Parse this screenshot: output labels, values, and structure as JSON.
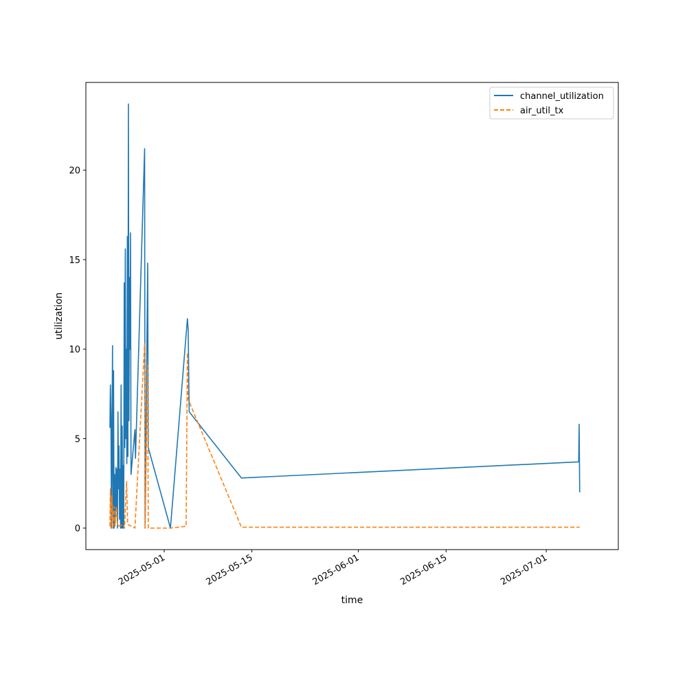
{
  "chart_data": {
    "type": "line",
    "title": "",
    "xlabel": "time",
    "ylabel": "utilization",
    "x_type": "date",
    "xlim": [
      "2025-04-18T12:00",
      "2025-07-12T12:00"
    ],
    "ylim": [
      -1.2,
      24.9
    ],
    "x_ticks": [
      "2025-05-01",
      "2025-05-15",
      "2025-06-01",
      "2025-06-15",
      "2025-07-01"
    ],
    "y_ticks": [
      0,
      5,
      10,
      15,
      20
    ],
    "grid": false,
    "legend": "top-right",
    "series": [
      {
        "name": "channel_utilization",
        "color": "#1f77b4",
        "style": "solid",
        "points": [
          [
            "2025-04-22T08:00",
            5.6
          ],
          [
            "2025-04-22T10:00",
            8.0
          ],
          [
            "2025-04-22T12:00",
            6.3
          ],
          [
            "2025-04-22T14:00",
            0.0
          ],
          [
            "2025-04-22T18:00",
            10.2
          ],
          [
            "2025-04-22T20:00",
            0.0
          ],
          [
            "2025-04-22T22:00",
            8.8
          ],
          [
            "2025-04-23T00:00",
            0.0
          ],
          [
            "2025-04-23T02:00",
            3.0
          ],
          [
            "2025-04-23T04:00",
            0.5
          ],
          [
            "2025-04-23T07:00",
            3.4
          ],
          [
            "2025-04-23T09:00",
            1.2
          ],
          [
            "2025-04-23T11:00",
            3.3
          ],
          [
            "2025-04-23T13:00",
            0.0
          ],
          [
            "2025-04-23T15:00",
            6.5
          ],
          [
            "2025-04-23T17:00",
            2.2
          ],
          [
            "2025-04-23T19:00",
            4.6
          ],
          [
            "2025-04-23T21:00",
            0.5
          ],
          [
            "2025-04-23T23:00",
            3.3
          ],
          [
            "2025-04-24T01:00",
            0.0
          ],
          [
            "2025-04-24T03:00",
            8.0
          ],
          [
            "2025-04-24T05:00",
            0.0
          ],
          [
            "2025-04-24T07:00",
            5.7
          ],
          [
            "2025-04-24T09:00",
            0.0
          ],
          [
            "2025-04-24T11:00",
            3.5
          ],
          [
            "2025-04-24T13:00",
            0.0
          ],
          [
            "2025-04-24T15:00",
            13.7
          ],
          [
            "2025-04-24T17:00",
            4.5
          ],
          [
            "2025-04-24T19:00",
            15.6
          ],
          [
            "2025-04-24T21:00",
            5.0
          ],
          [
            "2025-04-24T23:00",
            10.0
          ],
          [
            "2025-04-25T01:00",
            3.6
          ],
          [
            "2025-04-25T03:00",
            16.3
          ],
          [
            "2025-04-25T05:00",
            4.0
          ],
          [
            "2025-04-25T07:00",
            23.7
          ],
          [
            "2025-04-25T09:00",
            6.0
          ],
          [
            "2025-04-25T11:00",
            14.0
          ],
          [
            "2025-04-25T13:00",
            10.0
          ],
          [
            "2025-04-25T15:00",
            16.5
          ],
          [
            "2025-04-25T17:00",
            3.0
          ],
          [
            "2025-04-26T08:00",
            5.5
          ],
          [
            "2025-04-26T10:00",
            3.9
          ],
          [
            "2025-04-27T21:00",
            21.2
          ],
          [
            "2025-04-27T23:00",
            0.0
          ],
          [
            "2025-04-28T09:00",
            14.8
          ],
          [
            "2025-04-28T11:00",
            4.5
          ],
          [
            "2025-05-02T00:00",
            0.0
          ],
          [
            "2025-05-04T17:00",
            11.7
          ],
          [
            "2025-05-04T20:00",
            11.1
          ],
          [
            "2025-05-05T00:00",
            6.5
          ],
          [
            "2025-05-13T08:00",
            2.8
          ],
          [
            "2025-07-06T04:00",
            3.7
          ],
          [
            "2025-07-06T06:00",
            5.8
          ],
          [
            "2025-07-06T08:00",
            2.0
          ]
        ]
      },
      {
        "name": "air_util_tx",
        "color": "#ff7f0e",
        "style": "dashed",
        "points": [
          [
            "2025-04-22T08:00",
            0.1
          ],
          [
            "2025-04-22T10:00",
            2.2
          ],
          [
            "2025-04-22T12:00",
            0.0
          ],
          [
            "2025-04-22T16:00",
            1.8
          ],
          [
            "2025-04-22T20:00",
            0.0
          ],
          [
            "2025-04-23T00:00",
            1.2
          ],
          [
            "2025-04-23T04:00",
            0.1
          ],
          [
            "2025-04-23T09:00",
            1.2
          ],
          [
            "2025-04-23T13:00",
            0.1
          ],
          [
            "2025-04-24T12:00",
            0.2
          ],
          [
            "2025-04-24T16:00",
            0.0
          ],
          [
            "2025-04-25T00:00",
            2.6
          ],
          [
            "2025-04-25T04:00",
            0.2
          ],
          [
            "2025-04-25T20:00",
            0.1
          ],
          [
            "2025-04-26T08:00",
            0.0
          ],
          [
            "2025-04-27T21:00",
            10.3
          ],
          [
            "2025-04-27T23:00",
            0.0
          ],
          [
            "2025-04-28T09:00",
            9.1
          ],
          [
            "2025-04-28T11:00",
            0.0
          ],
          [
            "2025-05-02T00:00",
            0.0
          ],
          [
            "2025-05-04T12:00",
            0.1
          ],
          [
            "2025-05-04T17:00",
            9.8
          ],
          [
            "2025-05-04T20:00",
            7.2
          ],
          [
            "2025-05-13T08:00",
            0.05
          ],
          [
            "2025-07-06T08:00",
            0.05
          ]
        ]
      }
    ]
  }
}
